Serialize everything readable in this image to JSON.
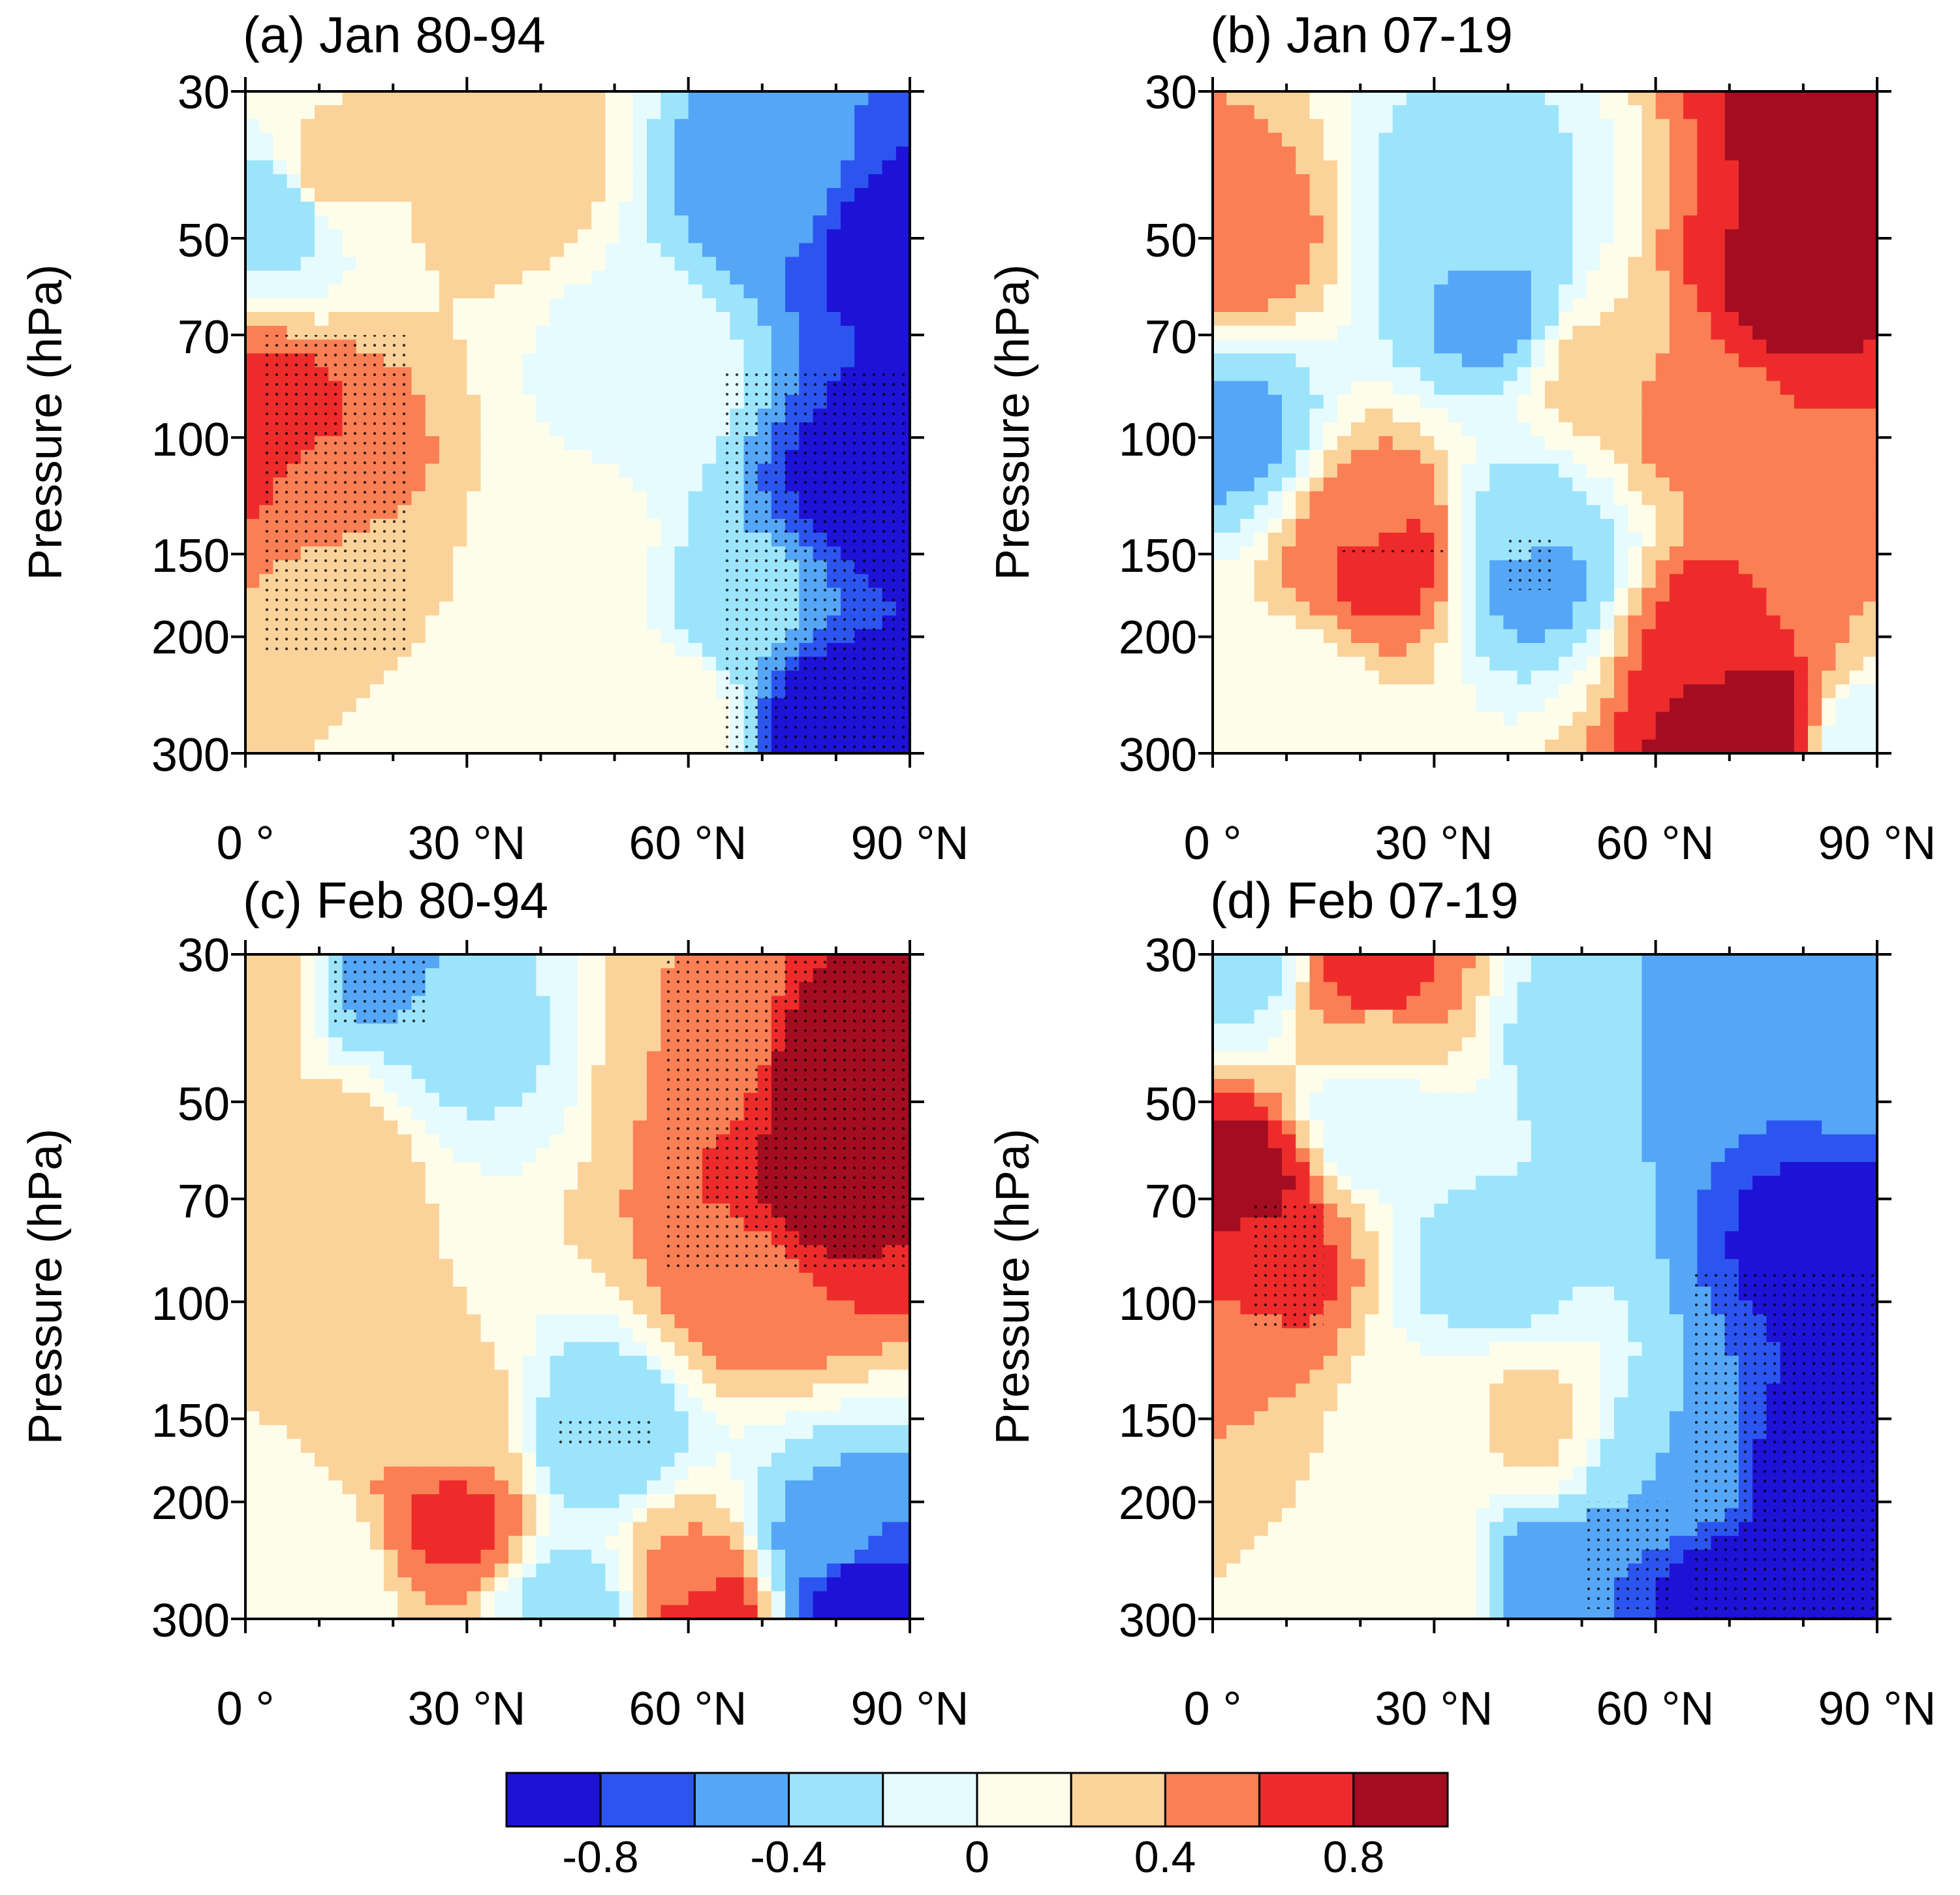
{
  "chart_data": {
    "type": "heatmap",
    "x_ticks": [
      "0 °",
      "30 °N",
      "60 °N",
      "90 °N"
    ],
    "x_values": [
      0,
      30,
      60,
      90
    ],
    "y_label": "Pressure (hPa)",
    "y_ticks": [
      "30",
      "50",
      "70",
      "100",
      "150",
      "200",
      "300"
    ],
    "y_values": [
      30,
      50,
      70,
      100,
      150,
      200,
      300
    ],
    "xlim": [
      0,
      90
    ],
    "ylim": [
      300,
      30
    ],
    "colorbar": {
      "levels": [
        -1.0,
        -0.8,
        -0.6,
        -0.4,
        -0.2,
        0,
        0.2,
        0.4,
        0.6,
        0.8,
        1.0
      ],
      "labels": [
        "-0.8",
        "-0.4",
        "0",
        "0.4",
        "0.8"
      ],
      "label_values": [
        -0.8,
        -0.4,
        0,
        0.4,
        0.8
      ],
      "colors": [
        "#1e12d6",
        "#2c55f0",
        "#55a6f6",
        "#9ce4fb",
        "#e6fbfd",
        "#fefdea",
        "#fbd39a",
        "#fa7f54",
        "#ee2b2b",
        "#a40d21"
      ]
    },
    "panels": [
      {
        "title": "(a) Jan 80-94",
        "centers": [
          {
            "lat": 10,
            "p": 40,
            "v": 0.3
          },
          {
            "lat": 35,
            "p": 38,
            "v": 0.35
          },
          {
            "lat": 5,
            "p": 44,
            "v": -0.35
          },
          {
            "lat": 2,
            "p": 100,
            "v": 0.75
          },
          {
            "lat": 10,
            "p": 120,
            "v": 0.55
          },
          {
            "lat": 15,
            "p": 170,
            "v": 0.22
          },
          {
            "lat": 45,
            "p": 150,
            "v": 0.1
          },
          {
            "lat": 55,
            "p": 80,
            "v": -0.1
          },
          {
            "lat": 72,
            "p": 40,
            "v": -0.5
          },
          {
            "lat": 88,
            "p": 50,
            "v": -0.9
          },
          {
            "lat": 85,
            "p": 120,
            "v": -0.95
          },
          {
            "lat": 80,
            "p": 260,
            "v": -0.95
          },
          {
            "lat": 68,
            "p": 180,
            "v": -0.35
          },
          {
            "lat": 57,
            "p": 260,
            "v": 0.15
          },
          {
            "lat": 35,
            "p": 270,
            "v": 0.05
          }
        ],
        "stipples": [
          [
            2,
            70,
            22,
            210
          ],
          [
            65,
            80,
            90,
            300
          ]
        ]
      },
      {
        "title": "(b) Jan 07-19",
        "centers": [
          {
            "lat": 88,
            "p": 35,
            "v": 1.0
          },
          {
            "lat": 78,
            "p": 60,
            "v": 0.85
          },
          {
            "lat": 65,
            "p": 90,
            "v": 0.5
          },
          {
            "lat": 52,
            "p": 80,
            "v": 0.25
          },
          {
            "lat": 3,
            "p": 50,
            "v": 0.5
          },
          {
            "lat": 35,
            "p": 45,
            "v": -0.3
          },
          {
            "lat": 38,
            "p": 65,
            "v": -0.45
          },
          {
            "lat": 42,
            "p": 140,
            "v": -0.3
          },
          {
            "lat": 43,
            "p": 160,
            "v": -0.5
          },
          {
            "lat": 3,
            "p": 100,
            "v": -0.45
          },
          {
            "lat": 24,
            "p": 150,
            "v": 0.75
          },
          {
            "lat": 22,
            "p": 135,
            "v": 0.5
          },
          {
            "lat": 72,
            "p": 270,
            "v": 1.0
          },
          {
            "lat": 68,
            "p": 200,
            "v": 0.7
          },
          {
            "lat": 84,
            "p": 160,
            "v": 0.4
          },
          {
            "lat": 10,
            "p": 250,
            "v": 0.05
          },
          {
            "lat": 90,
            "p": 300,
            "v": -0.2
          }
        ],
        "stipples": [
          [
            17,
            148,
            32,
            152
          ],
          [
            40,
            140,
            46,
            170
          ]
        ]
      },
      {
        "title": "(c) Feb 80-94",
        "centers": [
          {
            "lat": 80,
            "p": 45,
            "v": 1.0
          },
          {
            "lat": 78,
            "p": 70,
            "v": 0.85
          },
          {
            "lat": 68,
            "p": 95,
            "v": 0.5
          },
          {
            "lat": 63,
            "p": 40,
            "v": 0.4
          },
          {
            "lat": 18,
            "p": 32,
            "v": -0.45
          },
          {
            "lat": 30,
            "p": 40,
            "v": -0.25
          },
          {
            "lat": 1,
            "p": 33,
            "v": 0.4
          },
          {
            "lat": 12,
            "p": 60,
            "v": 0.3
          },
          {
            "lat": 28,
            "p": 210,
            "v": 0.65
          },
          {
            "lat": 28,
            "p": 160,
            "v": 0.3
          },
          {
            "lat": 48,
            "p": 160,
            "v": -0.4
          },
          {
            "lat": 62,
            "p": 290,
            "v": 0.8
          },
          {
            "lat": 60,
            "p": 260,
            "v": 0.4
          },
          {
            "lat": 82,
            "p": 280,
            "v": -0.95
          },
          {
            "lat": 78,
            "p": 230,
            "v": -0.45
          },
          {
            "lat": 45,
            "p": 290,
            "v": -0.3
          },
          {
            "lat": 10,
            "p": 250,
            "v": 0.05
          }
        ],
        "stipples": [
          [
            57,
            30,
            90,
            90
          ],
          [
            12,
            30,
            25,
            38
          ],
          [
            42,
            150,
            55,
            165
          ]
        ]
      },
      {
        "title": "(d) Feb 07-19",
        "centers": [
          {
            "lat": 3,
            "p": 65,
            "v": 0.9
          },
          {
            "lat": 7,
            "p": 90,
            "v": 0.7
          },
          {
            "lat": 2,
            "p": 120,
            "v": 0.4
          },
          {
            "lat": 22,
            "p": 33,
            "v": 0.7
          },
          {
            "lat": 22,
            "p": 40,
            "v": 0.35
          },
          {
            "lat": 3,
            "p": 32,
            "v": -0.25
          },
          {
            "lat": 22,
            "p": 52,
            "v": -0.2
          },
          {
            "lat": 37,
            "p": 90,
            "v": -0.3
          },
          {
            "lat": 50,
            "p": 40,
            "v": -0.3
          },
          {
            "lat": 68,
            "p": 40,
            "v": -0.55
          },
          {
            "lat": 88,
            "p": 45,
            "v": -0.55
          },
          {
            "lat": 85,
            "p": 80,
            "v": -0.95
          },
          {
            "lat": 83,
            "p": 180,
            "v": -0.95
          },
          {
            "lat": 70,
            "p": 280,
            "v": -0.95
          },
          {
            "lat": 62,
            "p": 180,
            "v": -0.4
          },
          {
            "lat": 45,
            "p": 270,
            "v": -0.6
          },
          {
            "lat": 42,
            "p": 150,
            "v": 0.25
          },
          {
            "lat": 30,
            "p": 270,
            "v": 0.2
          },
          {
            "lat": 30,
            "p": 150,
            "v": 0.02
          }
        ],
        "stipples": [
          [
            5,
            70,
            15,
            110
          ],
          [
            65,
            90,
            90,
            300
          ],
          [
            50,
            200,
            62,
            290
          ]
        ]
      }
    ]
  }
}
